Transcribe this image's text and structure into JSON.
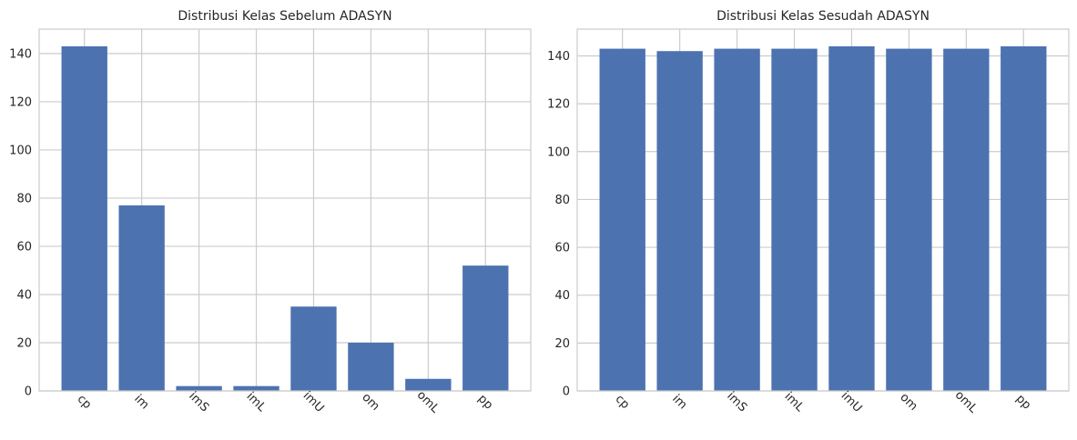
{
  "colors": {
    "bar": "#4c72b0",
    "grid": "#cccccc",
    "frame": "#cccccc",
    "text": "#262626",
    "background": "#ffffff"
  },
  "chart_data": [
    {
      "type": "bar",
      "title": "Distribusi Kelas Sebelum ADASYN",
      "xlabel": "",
      "ylabel": "",
      "categories": [
        "cp",
        "im",
        "imS",
        "imL",
        "imU",
        "om",
        "omL",
        "pp"
      ],
      "values": [
        143,
        77,
        2,
        2,
        35,
        20,
        5,
        52
      ],
      "ylim": [
        0,
        150.15
      ],
      "yticks": [
        0,
        20,
        40,
        60,
        80,
        100,
        120,
        140
      ],
      "grid": true,
      "xtick_rotation": 45
    },
    {
      "type": "bar",
      "title": "Distribusi Kelas Sesudah ADASYN",
      "xlabel": "",
      "ylabel": "",
      "categories": [
        "cp",
        "im",
        "imS",
        "imL",
        "imU",
        "om",
        "omL",
        "pp"
      ],
      "values": [
        143,
        142,
        143,
        143,
        144,
        143,
        143,
        144
      ],
      "ylim": [
        0,
        151.2
      ],
      "yticks": [
        0,
        20,
        40,
        60,
        80,
        100,
        120,
        140
      ],
      "grid": true,
      "xtick_rotation": 45
    }
  ]
}
